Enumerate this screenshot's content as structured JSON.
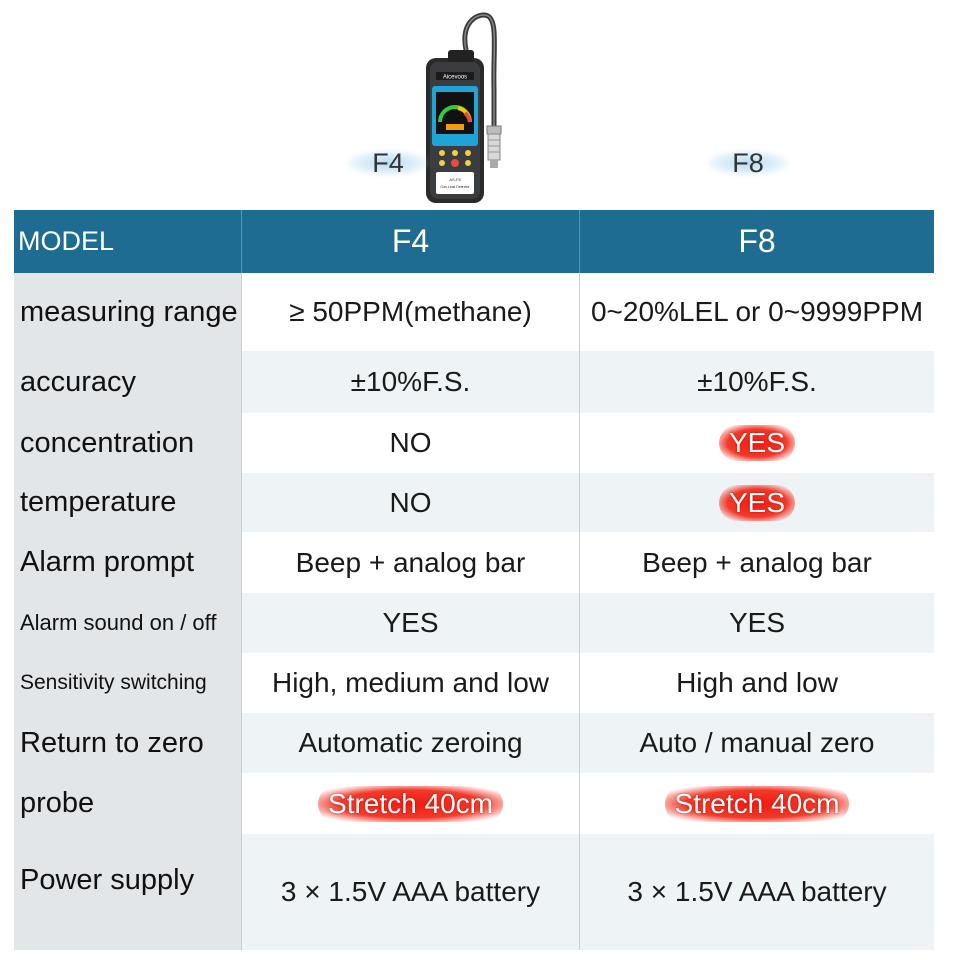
{
  "header": {
    "model_left": "F4",
    "model_right": "F8",
    "device_brand": "Aicevoos",
    "device_model": "AS-F8",
    "device_name": "Gas Leak Detector"
  },
  "table": {
    "columns": [
      "MODEL",
      "F4",
      "F8"
    ],
    "rows": [
      {
        "label": "measuring range",
        "f4": "≥ 50PPM(methane)",
        "f8": "0~20%LEL  or 0~9999PPM"
      },
      {
        "label": "accuracy",
        "f4": "±10%F.S.",
        "f8": "±10%F.S."
      },
      {
        "label": "concentration",
        "f4": "NO",
        "f8": "YES"
      },
      {
        "label": "temperature",
        "f4": "NO",
        "f8": "YES"
      },
      {
        "label": "Alarm prompt",
        "f4": "Beep + analog bar",
        "f8": "Beep + analog bar"
      },
      {
        "label": "Alarm sound on / off",
        "f4": "YES",
        "f8": "YES"
      },
      {
        "label": "Sensitivity switching",
        "f4": "High, medium and low",
        "f8": "High and low"
      },
      {
        "label": "Return to zero",
        "f4": "Automatic zeroing",
        "f8": "Auto / manual zero"
      },
      {
        "label": "probe",
        "f4": "Stretch 40cm",
        "f8": "Stretch 40cm"
      },
      {
        "label": "Power supply",
        "f4": "3 × 1.5V AAA  battery",
        "f8": "3 × 1.5V AAA  battery"
      }
    ]
  },
  "colors": {
    "header_blue": "#1f6c93",
    "highlight_red": "#f21a10",
    "label_gray": "#e3e6e9",
    "alt_row": "#eef3f6"
  }
}
